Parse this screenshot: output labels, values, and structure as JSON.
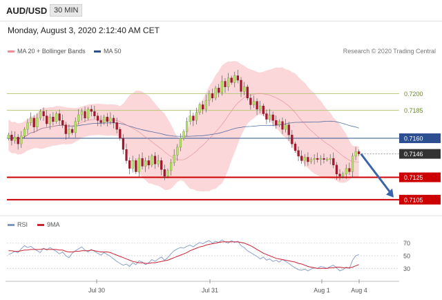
{
  "header": {
    "pair": "AUD/USD",
    "timeframe": "30 MIN"
  },
  "datetime": "Monday, August 3, 2020 2:12:40 AM CET",
  "legend": {
    "ma20": "MA 20 + Bollinger Bands",
    "ma50": "MA 50",
    "rsi": "RSI",
    "rsi_ma": "9MA"
  },
  "credit": "Research © 2020 Trading Central",
  "colors": {
    "bullish": "#b6e06a",
    "bearish": "#a9182c",
    "bands": "#f9c9cc",
    "ma50": "#2b4f91",
    "resistance": "#b8c67a",
    "support": "#cc0000",
    "current": "#333333",
    "arrow": "#3b64a8"
  },
  "chart_data": [
    {
      "type": "candlestick",
      "ylim": [
        0.7095,
        0.7225
      ],
      "x_ticks": [
        "Jul 30",
        "Jul 31",
        "Aug 1",
        "Aug 4"
      ],
      "levels": [
        {
          "value": 0.72,
          "label": "0.7200",
          "kind": "resistance"
        },
        {
          "value": 0.7185,
          "label": "0.7185",
          "kind": "resistance"
        },
        {
          "value": 0.716,
          "label": "0.7160",
          "kind": "pivot"
        },
        {
          "value": 0.7146,
          "label": "0.7146",
          "kind": "current"
        },
        {
          "value": 0.7125,
          "label": "0.7125",
          "kind": "support"
        },
        {
          "value": 0.7105,
          "label": "0.7105",
          "kind": "support"
        }
      ],
      "close": [
        0.7163,
        0.7158,
        0.7161,
        0.7155,
        0.7162,
        0.7168,
        0.7174,
        0.7178,
        0.717,
        0.7178,
        0.7184,
        0.718,
        0.7173,
        0.7179,
        0.7175,
        0.7182,
        0.7176,
        0.7172,
        0.7164,
        0.7168,
        0.7165,
        0.7175,
        0.7181,
        0.7184,
        0.7178,
        0.7186,
        0.7184,
        0.718,
        0.7176,
        0.7174,
        0.7179,
        0.7175,
        0.7178,
        0.7174,
        0.7168,
        0.716,
        0.715,
        0.714,
        0.7133,
        0.714,
        0.713,
        0.7142,
        0.7135,
        0.714,
        0.7136,
        0.7144,
        0.7137,
        0.714,
        0.7132,
        0.7126,
        0.7131,
        0.7138,
        0.7145,
        0.7152,
        0.716,
        0.7166,
        0.7175,
        0.718,
        0.7176,
        0.7183,
        0.719,
        0.7186,
        0.7194,
        0.72,
        0.7196,
        0.7205,
        0.7201,
        0.7211,
        0.7206,
        0.7214,
        0.721,
        0.7216,
        0.7212,
        0.7202,
        0.7206,
        0.7196,
        0.719,
        0.7193,
        0.7186,
        0.7189,
        0.7182,
        0.7177,
        0.7181,
        0.7176,
        0.7172,
        0.7175,
        0.7168,
        0.7172,
        0.7163,
        0.7155,
        0.7149,
        0.7144,
        0.714,
        0.7143,
        0.7139,
        0.7141,
        0.7142,
        0.7141,
        0.7142,
        0.7141,
        0.7141,
        0.7142,
        0.7136,
        0.7128,
        0.7126,
        0.7128,
        0.7133,
        0.713,
        0.7144,
        0.7148,
        0.7146
      ]
    },
    {
      "type": "line",
      "title": "RSI",
      "ylim": [
        15,
        85
      ],
      "y_ticks": [
        30,
        50,
        70
      ],
      "series": [
        {
          "name": "RSI",
          "values": [
            52,
            54,
            57,
            55,
            61,
            66,
            63,
            65,
            61,
            58,
            55,
            62,
            59,
            63,
            60,
            57,
            53,
            56,
            50,
            47,
            54,
            58,
            61,
            64,
            59,
            56,
            60,
            57,
            54,
            51,
            55,
            52,
            49,
            45,
            41,
            38,
            35,
            37,
            33,
            39,
            36,
            42,
            40,
            36,
            39,
            44,
            41,
            45,
            48,
            43,
            47,
            53,
            58,
            61,
            63,
            62,
            65,
            67,
            64,
            68,
            71,
            69,
            72,
            74,
            70,
            73,
            71,
            75,
            72,
            70,
            74,
            71,
            73,
            66,
            63,
            58,
            55,
            52,
            49,
            45,
            48,
            43,
            45,
            41,
            43,
            40,
            44,
            41,
            38,
            34,
            31,
            28,
            27,
            29,
            26,
            29,
            31,
            30,
            33,
            32,
            30,
            33,
            35,
            31,
            26,
            28,
            32,
            30,
            43,
            50,
            52
          ]
        },
        {
          "name": "9MA",
          "values": [
            58,
            58,
            57,
            57,
            58,
            59,
            59,
            60,
            60,
            60,
            60,
            61,
            60,
            60,
            60,
            60,
            59,
            59,
            57,
            56,
            56,
            57,
            57,
            58,
            58,
            58,
            59,
            58,
            57,
            56,
            56,
            56,
            55,
            53,
            51,
            49,
            47,
            45,
            43,
            41,
            40,
            39,
            39,
            38,
            38,
            39,
            39,
            40,
            41,
            42,
            43,
            45,
            47,
            49,
            51,
            53,
            55,
            58,
            60,
            62,
            64,
            65,
            67,
            68,
            69,
            70,
            71,
            72,
            72,
            72,
            72,
            72,
            72,
            71,
            70,
            68,
            66,
            63,
            60,
            57,
            54,
            52,
            50,
            48,
            46,
            45,
            44,
            43,
            42,
            41,
            40,
            38,
            37,
            35,
            33,
            32,
            31,
            30,
            30,
            30,
            30,
            31,
            31,
            32,
            32,
            31,
            31,
            31,
            32,
            34,
            36
          ]
        }
      ]
    }
  ]
}
